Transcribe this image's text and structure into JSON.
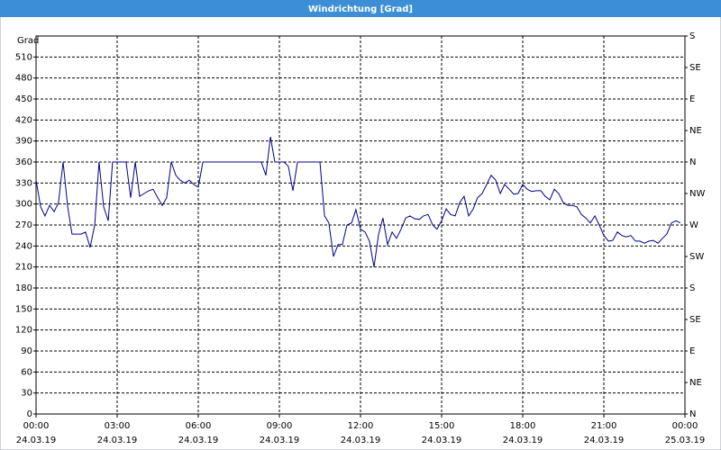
{
  "chart_data": {
    "type": "line",
    "title": "Windrichtung [Grad]",
    "y_label": "Grad",
    "xlim": [
      0,
      24
    ],
    "ylim": [
      0,
      540
    ],
    "y2lim": [
      0,
      540
    ],
    "grid": true,
    "xticks": [
      {
        "value": 0,
        "label": "00:00"
      },
      {
        "value": 3,
        "label": "03:00"
      },
      {
        "value": 6,
        "label": "06:00"
      },
      {
        "value": 9,
        "label": "09:00"
      },
      {
        "value": 12,
        "label": "12:00"
      },
      {
        "value": 15,
        "label": "15:00"
      },
      {
        "value": 18,
        "label": "18:00"
      },
      {
        "value": 21,
        "label": "21:00"
      },
      {
        "value": 24,
        "label": "00:00"
      }
    ],
    "x_dates": [
      "24.03.19",
      "24.03.19",
      "24.03.19",
      "24.03.19",
      "24.03.19",
      "24.03.19",
      "24.03.19",
      "24.03.19",
      "25.03.19"
    ],
    "yticks": [
      0,
      30,
      60,
      90,
      120,
      150,
      180,
      210,
      240,
      270,
      300,
      330,
      360,
      390,
      420,
      450,
      480,
      510
    ],
    "y2ticks": [
      {
        "value": 0,
        "label": "N"
      },
      {
        "value": 45,
        "label": "NE"
      },
      {
        "value": 90,
        "label": "E"
      },
      {
        "value": 135,
        "label": "SE"
      },
      {
        "value": 180,
        "label": "S"
      },
      {
        "value": 225,
        "label": "SW"
      },
      {
        "value": 270,
        "label": "W"
      },
      {
        "value": 315,
        "label": "NW"
      },
      {
        "value": 360,
        "label": "N"
      },
      {
        "value": 405,
        "label": "NE"
      },
      {
        "value": 450,
        "label": "E"
      },
      {
        "value": 495,
        "label": "SE"
      },
      {
        "value": 540,
        "label": "S"
      }
    ],
    "series": [
      {
        "color": "#000088",
        "x": [
          0,
          0.17,
          0.33,
          0.5,
          0.67,
          0.83,
          1,
          1.17,
          1.33,
          1.67,
          1.83,
          2,
          2.17,
          2.33,
          2.5,
          2.67,
          2.83,
          3.33,
          3.5,
          3.67,
          3.83,
          4,
          4.17,
          4.33,
          4.5,
          4.67,
          4.83,
          5,
          5.17,
          5.33,
          5.5,
          5.67,
          5.83,
          6,
          6.17,
          8.33,
          8.5,
          8.67,
          8.83,
          9.17,
          9.33,
          9.5,
          9.67,
          10.5,
          10.67,
          10.83,
          11,
          11.17,
          11.33,
          11.5,
          11.67,
          11.83,
          12,
          12.17,
          12.33,
          12.5,
          12.67,
          12.83,
          13,
          13.17,
          13.33,
          13.5,
          13.67,
          13.83,
          14,
          14.17,
          14.33,
          14.5,
          14.67,
          14.83,
          15,
          15.17,
          15.33,
          15.5,
          15.67,
          15.83,
          16,
          16.17,
          16.33,
          16.5,
          16.67,
          16.83,
          17,
          17.17,
          17.33,
          17.5,
          17.67,
          17.83,
          18,
          18.17,
          18.33,
          18.5,
          18.67,
          18.83,
          19,
          19.17,
          19.33,
          19.5,
          19.67,
          19.83,
          20,
          20.17,
          20.33,
          20.5,
          20.67,
          20.83,
          21,
          21.17,
          21.33,
          21.5,
          21.67,
          21.83,
          22,
          22.17,
          22.33,
          22.5,
          22.67,
          22.83,
          23,
          23.17,
          23.33,
          23.5,
          23.67,
          23.83
        ],
        "values": [
          334,
          296,
          283,
          298,
          289,
          302,
          360,
          296,
          257,
          257,
          260,
          238,
          270,
          360,
          296,
          276,
          360,
          360,
          309,
          360,
          311,
          315,
          319,
          321,
          309,
          298,
          309,
          360,
          341,
          334,
          330,
          334,
          328,
          324,
          360,
          360,
          341,
          396,
          360,
          360,
          354,
          319,
          360,
          360,
          283,
          273,
          225,
          242,
          242,
          270,
          273,
          292,
          264,
          260,
          247,
          210,
          257,
          280,
          242,
          260,
          251,
          264,
          280,
          283,
          279,
          278,
          283,
          285,
          270,
          264,
          276,
          293,
          285,
          283,
          302,
          311,
          283,
          293,
          309,
          315,
          328,
          341,
          334,
          315,
          328,
          321,
          314,
          315,
          328,
          321,
          318,
          319,
          319,
          311,
          306,
          321,
          315,
          302,
          298,
          298,
          296,
          285,
          280,
          273,
          283,
          270,
          255,
          247,
          248,
          260,
          255,
          253,
          255,
          247,
          247,
          244,
          247,
          248,
          244,
          251,
          257,
          273,
          276,
          273
        ]
      }
    ]
  }
}
